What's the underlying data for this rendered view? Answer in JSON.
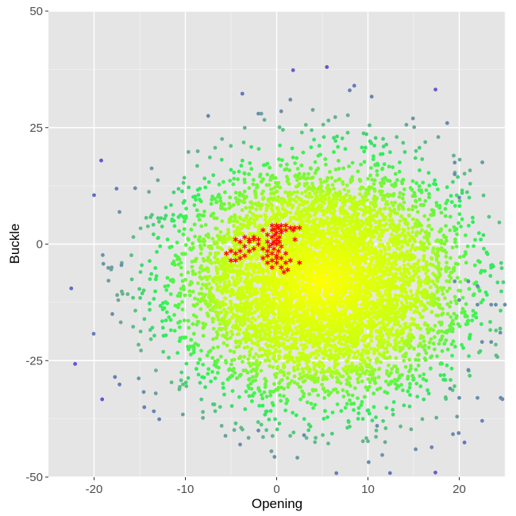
{
  "chart_data": {
    "type": "scatter",
    "xlabel": "Opening",
    "ylabel": "Buckle",
    "xlim": [
      -25,
      25
    ],
    "ylim": [
      -50,
      50
    ],
    "x_ticks": [
      -20,
      -10,
      0,
      10,
      20
    ],
    "y_ticks": [
      50,
      25,
      0,
      -25,
      -50
    ],
    "x_tick_labels": [
      "-20",
      "-10",
      "0",
      "10",
      "20"
    ],
    "y_tick_labels": [
      "50",
      "25",
      "0",
      "-25",
      "-50"
    ],
    "grid": true,
    "legend": "none",
    "colors": {
      "panel_background": "#e5e5e5",
      "grid_major": "#ffffff",
      "density_low": "#5a2df0",
      "density_mid": "#2ef05a",
      "density_high": "#ffff00",
      "highlight": "#ff0000"
    },
    "point_cloud": {
      "marker": "circle",
      "color_scale": "density (yellow center to blue outliers)",
      "center": [
        5,
        -8
      ],
      "spread": [
        7.5,
        12
      ],
      "count": 6500
    },
    "outlier_points": [
      [
        5.5,
        38
      ],
      [
        8.5,
        34
      ],
      [
        8,
        33
      ],
      [
        -20,
        10.5
      ],
      [
        -22.5,
        -9.5
      ],
      [
        -14.5,
        -35
      ],
      [
        -4,
        -43
      ],
      [
        -2,
        -40
      ],
      [
        3,
        -41
      ],
      [
        11,
        -39
      ],
      [
        20,
        -33
      ],
      [
        22,
        -33
      ],
      [
        19,
        -31
      ],
      [
        21,
        -27
      ],
      [
        22.5,
        -21
      ],
      [
        24.5,
        -19
      ],
      [
        25,
        -13
      ],
      [
        23.5,
        -13
      ],
      [
        22,
        -13
      ],
      [
        20,
        -12
      ],
      [
        19.5,
        -8
      ],
      [
        21,
        -8
      ],
      [
        22,
        -9
      ],
      [
        24,
        -13
      ],
      [
        -7.5,
        27.5
      ],
      [
        1.5,
        31
      ],
      [
        0.5,
        28.5
      ],
      [
        -2,
        28
      ],
      [
        23.5,
        -21
      ],
      [
        19.5,
        15
      ],
      [
        19.5,
        17.5
      ],
      [
        20,
        10
      ],
      [
        -18,
        -15
      ],
      [
        -17,
        -4.5
      ],
      [
        -15.5,
        12
      ]
    ],
    "highlight_points": {
      "marker": "asterisk",
      "color": "#ff0000",
      "points": [
        [
          0,
          4
        ],
        [
          0.5,
          4
        ],
        [
          1,
          4
        ],
        [
          0.2,
          3.5
        ],
        [
          -0.2,
          3.2
        ],
        [
          0.5,
          3
        ],
        [
          1,
          3
        ],
        [
          -0.5,
          3
        ],
        [
          0,
          2.5
        ],
        [
          0.5,
          2.5
        ],
        [
          -0.2,
          2
        ],
        [
          0.3,
          1.5
        ],
        [
          -0.5,
          1.5
        ],
        [
          0,
          1
        ],
        [
          -0.3,
          0.5
        ],
        [
          0.3,
          0.5
        ],
        [
          -0.5,
          0
        ],
        [
          0,
          0
        ],
        [
          0.5,
          -0.5
        ],
        [
          -0.8,
          -0.5
        ],
        [
          -0.3,
          -1
        ],
        [
          0.2,
          -1.5
        ],
        [
          -0.5,
          -2
        ],
        [
          0,
          -2.5
        ],
        [
          -1,
          -2.5
        ],
        [
          0.5,
          -3
        ],
        [
          -0.5,
          -3.5
        ],
        [
          0,
          -4
        ],
        [
          1,
          -4
        ],
        [
          -1,
          -4
        ],
        [
          0.5,
          -5
        ],
        [
          -0.5,
          -5
        ],
        [
          0,
          -3
        ],
        [
          1,
          -2
        ],
        [
          -1.5,
          -3
        ],
        [
          1.2,
          -5.5
        ],
        [
          0.8,
          -6
        ],
        [
          1.5,
          3.5
        ],
        [
          2,
          3.5
        ],
        [
          2.5,
          3.5
        ],
        [
          1.8,
          3
        ],
        [
          2.5,
          -4
        ],
        [
          -1.5,
          3
        ],
        [
          -1,
          2
        ],
        [
          -2.5,
          1.5
        ],
        [
          -3,
          1
        ],
        [
          -3.5,
          1.5
        ],
        [
          -3,
          0.5
        ],
        [
          -4,
          0.5
        ],
        [
          -4.5,
          1
        ],
        [
          -3.5,
          -0.5
        ],
        [
          -4,
          -1.5
        ],
        [
          -4.5,
          -2
        ],
        [
          -3.5,
          -2.5
        ],
        [
          -4,
          -3
        ],
        [
          -5,
          -1.5
        ],
        [
          -5.5,
          -2
        ],
        [
          -4.5,
          -3.5
        ],
        [
          -5,
          -3.5
        ],
        [
          -2.5,
          -1
        ],
        [
          -2,
          0
        ],
        [
          -2.5,
          1
        ],
        [
          -1.5,
          -1
        ],
        [
          -1,
          -1.5
        ],
        [
          -1,
          0.5
        ],
        [
          -2,
          1
        ],
        [
          -3,
          -1.5
        ],
        [
          1.5,
          -3.5
        ],
        [
          2,
          1
        ],
        [
          -0.5,
          4
        ]
      ]
    }
  }
}
